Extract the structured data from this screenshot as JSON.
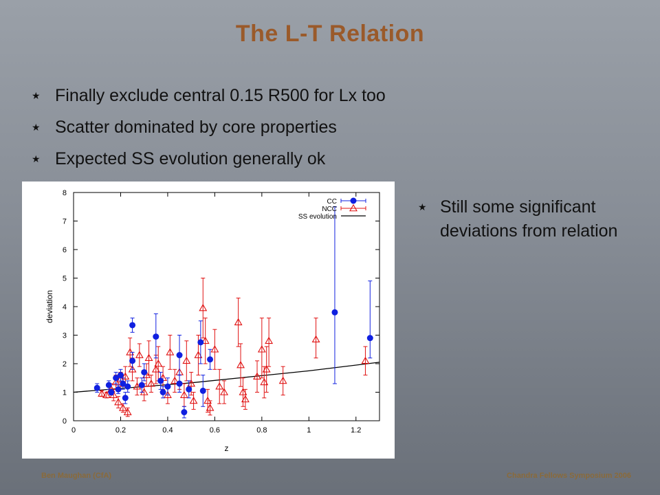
{
  "title": "The L-T Relation",
  "bullets": [
    "Finally exclude central 0.15 R500 for Lx too",
    "Scatter dominated by core properties",
    "Expected SS evolution generally ok"
  ],
  "side_bullets": [
    "Still some significant deviations from relation"
  ],
  "footer": {
    "left": "Ben Maughan (CfA)",
    "right": "Chandra Fellows Symposium 2006"
  },
  "colors": {
    "title": "#9a5a2a",
    "cc": "#1020e0",
    "ncc": "#e01010",
    "ss": "#000000"
  },
  "chart_data": {
    "type": "scatter",
    "xlabel": "z",
    "ylabel": "deviation",
    "xlim": [
      0,
      1.3
    ],
    "ylim": [
      0,
      8
    ],
    "xticks": [
      0,
      0.2,
      0.4,
      0.6,
      0.8,
      1,
      1.2
    ],
    "xtick_labels": [
      "0",
      "0.2",
      "0.4",
      "0.6",
      "0.8",
      "1",
      "1.2"
    ],
    "yticks": [
      0,
      1,
      2,
      3,
      4,
      5,
      6,
      7,
      8
    ],
    "legend_position": "top-right",
    "series": [
      {
        "name": "CC",
        "marker": "circle",
        "points": [
          {
            "x": 0.1,
            "y": 1.15,
            "lo": 1.0,
            "hi": 1.3
          },
          {
            "x": 0.15,
            "y": 1.25,
            "lo": 1.1,
            "hi": 1.4
          },
          {
            "x": 0.16,
            "y": 1.0,
            "lo": 0.9,
            "hi": 1.1
          },
          {
            "x": 0.18,
            "y": 1.5,
            "lo": 1.3,
            "hi": 1.7
          },
          {
            "x": 0.19,
            "y": 1.1,
            "lo": 0.95,
            "hi": 1.25
          },
          {
            "x": 0.2,
            "y": 1.6,
            "lo": 1.4,
            "hi": 1.8
          },
          {
            "x": 0.21,
            "y": 1.3,
            "lo": 1.1,
            "hi": 1.5
          },
          {
            "x": 0.22,
            "y": 0.8,
            "lo": 0.6,
            "hi": 1.0
          },
          {
            "x": 0.23,
            "y": 1.2,
            "lo": 1.0,
            "hi": 1.4
          },
          {
            "x": 0.25,
            "y": 3.35,
            "lo": 3.1,
            "hi": 3.6
          },
          {
            "x": 0.25,
            "y": 2.1,
            "lo": 1.8,
            "hi": 2.4
          },
          {
            "x": 0.29,
            "y": 1.25,
            "lo": 1.0,
            "hi": 1.5
          },
          {
            "x": 0.3,
            "y": 1.7,
            "lo": 1.4,
            "hi": 2.0
          },
          {
            "x": 0.35,
            "y": 2.95,
            "lo": 2.2,
            "hi": 3.75
          },
          {
            "x": 0.37,
            "y": 1.4,
            "lo": 1.1,
            "hi": 1.7
          },
          {
            "x": 0.38,
            "y": 1.0,
            "lo": 0.8,
            "hi": 1.2
          },
          {
            "x": 0.4,
            "y": 1.2,
            "lo": 0.9,
            "hi": 1.5
          },
          {
            "x": 0.45,
            "y": 2.3,
            "lo": 1.6,
            "hi": 3.0
          },
          {
            "x": 0.45,
            "y": 1.3,
            "lo": 1.0,
            "hi": 1.6
          },
          {
            "x": 0.47,
            "y": 0.3,
            "lo": 0.1,
            "hi": 0.5
          },
          {
            "x": 0.49,
            "y": 1.1,
            "lo": 0.8,
            "hi": 1.4
          },
          {
            "x": 0.54,
            "y": 2.75,
            "lo": 2.0,
            "hi": 3.5
          },
          {
            "x": 0.55,
            "y": 1.05,
            "lo": 0.5,
            "hi": 1.6
          },
          {
            "x": 0.58,
            "y": 2.15,
            "lo": 1.8,
            "hi": 2.5
          },
          {
            "x": 1.11,
            "y": 3.8,
            "lo": 1.3,
            "hi": 7.5
          },
          {
            "x": 1.26,
            "y": 2.9,
            "lo": 2.2,
            "hi": 4.9
          }
        ]
      },
      {
        "name": "NCC",
        "marker": "triangle",
        "points": [
          {
            "x": 0.12,
            "y": 0.95,
            "lo": 0.85,
            "hi": 1.05
          },
          {
            "x": 0.14,
            "y": 0.9,
            "lo": 0.8,
            "hi": 1.0
          },
          {
            "x": 0.16,
            "y": 1.1,
            "lo": 0.9,
            "hi": 1.3
          },
          {
            "x": 0.17,
            "y": 0.9,
            "lo": 0.7,
            "hi": 1.1
          },
          {
            "x": 0.18,
            "y": 1.35,
            "lo": 1.1,
            "hi": 1.6
          },
          {
            "x": 0.19,
            "y": 0.65,
            "lo": 0.45,
            "hi": 0.85
          },
          {
            "x": 0.2,
            "y": 1.45,
            "lo": 1.2,
            "hi": 1.7
          },
          {
            "x": 0.21,
            "y": 0.45,
            "lo": 0.3,
            "hi": 0.6
          },
          {
            "x": 0.22,
            "y": 1.55,
            "lo": 1.2,
            "hi": 1.9
          },
          {
            "x": 0.23,
            "y": 0.3,
            "lo": 0.15,
            "hi": 0.45
          },
          {
            "x": 0.24,
            "y": 2.4,
            "lo": 1.9,
            "hi": 2.9
          },
          {
            "x": 0.25,
            "y": 1.8,
            "lo": 1.4,
            "hi": 2.2
          },
          {
            "x": 0.27,
            "y": 1.2,
            "lo": 0.9,
            "hi": 1.5
          },
          {
            "x": 0.28,
            "y": 2.3,
            "lo": 1.9,
            "hi": 2.7
          },
          {
            "x": 0.3,
            "y": 1.0,
            "lo": 0.7,
            "hi": 1.3
          },
          {
            "x": 0.31,
            "y": 1.6,
            "lo": 1.2,
            "hi": 2.0
          },
          {
            "x": 0.32,
            "y": 2.2,
            "lo": 1.6,
            "hi": 2.8
          },
          {
            "x": 0.33,
            "y": 1.3,
            "lo": 1.0,
            "hi": 1.6
          },
          {
            "x": 0.35,
            "y": 1.8,
            "lo": 1.3,
            "hi": 2.3
          },
          {
            "x": 0.36,
            "y": 2.0,
            "lo": 1.4,
            "hi": 2.6
          },
          {
            "x": 0.38,
            "y": 1.5,
            "lo": 1.1,
            "hi": 1.9
          },
          {
            "x": 0.4,
            "y": 0.9,
            "lo": 0.6,
            "hi": 1.2
          },
          {
            "x": 0.41,
            "y": 2.4,
            "lo": 1.8,
            "hi": 3.0
          },
          {
            "x": 0.43,
            "y": 1.4,
            "lo": 1.0,
            "hi": 1.8
          },
          {
            "x": 0.45,
            "y": 1.7,
            "lo": 1.1,
            "hi": 2.3
          },
          {
            "x": 0.47,
            "y": 0.9,
            "lo": 0.5,
            "hi": 1.3
          },
          {
            "x": 0.48,
            "y": 2.1,
            "lo": 1.4,
            "hi": 2.8
          },
          {
            "x": 0.5,
            "y": 1.3,
            "lo": 0.9,
            "hi": 1.7
          },
          {
            "x": 0.51,
            "y": 0.7,
            "lo": 0.4,
            "hi": 1.0
          },
          {
            "x": 0.53,
            "y": 2.3,
            "lo": 1.6,
            "hi": 3.0
          },
          {
            "x": 0.55,
            "y": 3.95,
            "lo": 2.9,
            "hi": 5.0
          },
          {
            "x": 0.56,
            "y": 2.8,
            "lo": 2.0,
            "hi": 3.6
          },
          {
            "x": 0.57,
            "y": 0.7,
            "lo": 0.3,
            "hi": 1.1
          },
          {
            "x": 0.58,
            "y": 0.45,
            "lo": 0.2,
            "hi": 0.7
          },
          {
            "x": 0.6,
            "y": 2.5,
            "lo": 1.8,
            "hi": 3.2
          },
          {
            "x": 0.62,
            "y": 1.2,
            "lo": 0.6,
            "hi": 1.8
          },
          {
            "x": 0.64,
            "y": 1.0,
            "lo": 0.6,
            "hi": 1.4
          },
          {
            "x": 0.7,
            "y": 3.45,
            "lo": 2.6,
            "hi": 4.3
          },
          {
            "x": 0.71,
            "y": 1.95,
            "lo": 1.2,
            "hi": 2.7
          },
          {
            "x": 0.72,
            "y": 1.0,
            "lo": 0.5,
            "hi": 1.5
          },
          {
            "x": 0.73,
            "y": 0.75,
            "lo": 0.4,
            "hi": 1.1
          },
          {
            "x": 0.78,
            "y": 1.55,
            "lo": 1.0,
            "hi": 2.1
          },
          {
            "x": 0.8,
            "y": 2.5,
            "lo": 1.5,
            "hi": 3.6
          },
          {
            "x": 0.81,
            "y": 1.35,
            "lo": 0.8,
            "hi": 1.9
          },
          {
            "x": 0.82,
            "y": 1.8,
            "lo": 1.0,
            "hi": 2.6
          },
          {
            "x": 0.83,
            "y": 2.8,
            "lo": 1.9,
            "hi": 3.6
          },
          {
            "x": 0.89,
            "y": 1.4,
            "lo": 0.9,
            "hi": 1.9
          },
          {
            "x": 1.03,
            "y": 2.85,
            "lo": 2.2,
            "hi": 3.6
          },
          {
            "x": 1.24,
            "y": 2.1,
            "lo": 1.6,
            "hi": 2.6
          }
        ]
      },
      {
        "name": "SS evolution",
        "marker": "line",
        "points": [
          {
            "x": 0,
            "y": 1.0
          },
          {
            "x": 0.5,
            "y": 1.33
          },
          {
            "x": 1.0,
            "y": 1.75
          },
          {
            "x": 1.3,
            "y": 2.05
          }
        ]
      }
    ]
  }
}
